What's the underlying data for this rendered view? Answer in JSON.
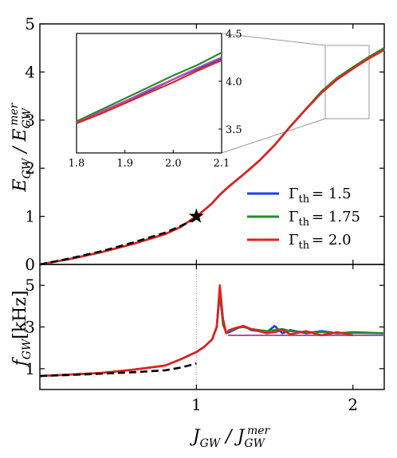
{
  "chart_data": [
    {
      "panel": "top",
      "type": "line",
      "ylabel": "E_GW / E_GW^mer",
      "xlim": [
        0,
        2.2
      ],
      "ylim": [
        0,
        5
      ],
      "yticks": [
        "0",
        "1",
        "2",
        "3",
        "4",
        "5"
      ],
      "legend_position": "lower-right",
      "series": [
        {
          "name": "Γth = 1.5",
          "color": "#1f3fe0",
          "x": [
            0,
            0.2,
            0.4,
            0.6,
            0.8,
            0.9,
            1.0,
            1.05,
            1.1,
            1.15,
            1.2,
            1.3,
            1.4,
            1.5,
            1.6,
            1.7,
            1.8,
            1.9,
            2.0,
            2.1,
            2.2
          ],
          "y": [
            0,
            0.12,
            0.26,
            0.43,
            0.63,
            0.78,
            1.0,
            1.13,
            1.27,
            1.45,
            1.6,
            1.87,
            2.15,
            2.48,
            2.87,
            3.23,
            3.58,
            3.86,
            4.08,
            4.29,
            4.48
          ]
        },
        {
          "name": "Γth = 1.75",
          "color": "#2a8a2a",
          "x": [
            0,
            0.2,
            0.4,
            0.6,
            0.8,
            0.9,
            1.0,
            1.05,
            1.1,
            1.15,
            1.2,
            1.3,
            1.4,
            1.5,
            1.6,
            1.7,
            1.8,
            1.9,
            2.0,
            2.1,
            2.2
          ],
          "y": [
            0,
            0.12,
            0.26,
            0.43,
            0.63,
            0.78,
            1.0,
            1.13,
            1.27,
            1.45,
            1.6,
            1.87,
            2.15,
            2.48,
            2.87,
            3.23,
            3.6,
            3.88,
            4.1,
            4.31,
            4.5
          ]
        },
        {
          "name": "Γth = 2.0",
          "color": "#e32020",
          "x": [
            0,
            0.2,
            0.4,
            0.6,
            0.8,
            0.9,
            1.0,
            1.05,
            1.1,
            1.15,
            1.2,
            1.3,
            1.4,
            1.5,
            1.6,
            1.7,
            1.8,
            1.9,
            2.0,
            2.1,
            2.2
          ],
          "y": [
            0,
            0.12,
            0.26,
            0.43,
            0.63,
            0.78,
            1.0,
            1.13,
            1.27,
            1.45,
            1.6,
            1.87,
            2.15,
            2.48,
            2.87,
            3.23,
            3.57,
            3.85,
            4.07,
            4.28,
            4.46
          ]
        }
      ],
      "dashed_reference": {
        "color": "#000000",
        "x": [
          0,
          0.2,
          0.4,
          0.6,
          0.8,
          0.9,
          1.0
        ],
        "y": [
          0,
          0.13,
          0.28,
          0.46,
          0.66,
          0.8,
          0.96
        ]
      },
      "marker": {
        "symbol": "star",
        "x": 1.0,
        "y": 1.0,
        "color": "#000000"
      },
      "inset": {
        "xlim": [
          1.8,
          2.1
        ],
        "ylim": [
          3.25,
          4.5
        ],
        "xticks": [
          "1.8",
          "1.9",
          "2.0",
          "2.1"
        ],
        "yticks": [
          "3.5",
          "4.0",
          "4.5"
        ],
        "series": [
          {
            "color": "#1f3fe0",
            "x": [
              1.8,
              1.85,
              1.9,
              1.95,
              2.0,
              2.05,
              2.1
            ],
            "y": [
              3.57,
              3.68,
              3.79,
              3.9,
              4.02,
              4.13,
              4.24
            ]
          },
          {
            "color": "#2a8a2a",
            "x": [
              1.8,
              1.85,
              1.9,
              1.95,
              2.0,
              2.05,
              2.1
            ],
            "y": [
              3.58,
              3.7,
              3.82,
              3.94,
              4.06,
              4.17,
              4.3
            ]
          },
          {
            "color": "#b050b0",
            "x": [
              1.8,
              1.85,
              1.9,
              1.95,
              2.0,
              2.05,
              2.1
            ],
            "y": [
              3.56,
              3.68,
              3.79,
              3.91,
              4.02,
              4.14,
              4.25
            ]
          },
          {
            "color": "#e32020",
            "x": [
              1.8,
              1.85,
              1.9,
              1.95,
              2.0,
              2.05,
              2.1
            ],
            "y": [
              3.56,
              3.66,
              3.77,
              3.88,
              3.99,
              4.11,
              4.22
            ]
          }
        ]
      }
    },
    {
      "panel": "bottom",
      "type": "line",
      "ylabel": "f_GW [kHz]",
      "xlabel": "J_GW / J_GW^mer",
      "xlim": [
        0,
        2.2
      ],
      "ylim": [
        0,
        6
      ],
      "xticks": [
        "1",
        "2"
      ],
      "yticks": [
        "1",
        "3",
        "5"
      ],
      "series": [
        {
          "name": "Γth = 1.5",
          "color": "#1f3fe0",
          "x": [
            0,
            0.2,
            0.4,
            0.6,
            0.8,
            0.9,
            1.0,
            1.05,
            1.1,
            1.13,
            1.15,
            1.17,
            1.19,
            1.21,
            1.25,
            1.3,
            1.35,
            1.4,
            1.45,
            1.5,
            1.55,
            1.6,
            1.7,
            1.8,
            1.9,
            2.0,
            2.2
          ],
          "y": [
            0.65,
            0.72,
            0.8,
            0.95,
            1.15,
            1.45,
            1.8,
            2.05,
            2.4,
            3.0,
            4.6,
            3.2,
            2.7,
            2.75,
            2.9,
            3.05,
            2.85,
            2.8,
            2.75,
            3.05,
            2.7,
            2.85,
            2.7,
            2.8,
            2.7,
            2.75,
            2.7
          ]
        },
        {
          "name": "Γth = 1.75",
          "color": "#2a8a2a",
          "x": [
            0,
            0.2,
            0.4,
            0.6,
            0.8,
            0.9,
            1.0,
            1.05,
            1.1,
            1.13,
            1.15,
            1.17,
            1.19,
            1.21,
            1.25,
            1.3,
            1.35,
            1.4,
            1.45,
            1.5,
            1.55,
            1.6,
            1.7,
            1.8,
            1.9,
            2.0,
            2.2
          ],
          "y": [
            0.65,
            0.72,
            0.8,
            0.95,
            1.15,
            1.45,
            1.8,
            2.05,
            2.4,
            3.0,
            4.8,
            3.1,
            2.75,
            2.8,
            2.95,
            3.0,
            2.9,
            2.85,
            2.8,
            2.85,
            2.9,
            2.8,
            2.75,
            2.75,
            2.7,
            2.72,
            2.7
          ]
        },
        {
          "name": "Γth = 2.0",
          "color": "#e32020",
          "x": [
            0,
            0.2,
            0.4,
            0.6,
            0.8,
            0.9,
            1.0,
            1.05,
            1.1,
            1.13,
            1.15,
            1.17,
            1.19,
            1.21,
            1.25,
            1.3,
            1.35,
            1.4,
            1.45,
            1.5,
            1.55,
            1.6,
            1.7,
            1.8,
            1.9,
            2.0
          ],
          "y": [
            0.65,
            0.72,
            0.8,
            0.95,
            1.15,
            1.45,
            1.8,
            2.05,
            2.4,
            3.0,
            5.0,
            3.4,
            2.7,
            2.85,
            2.95,
            3.05,
            2.9,
            2.8,
            2.7,
            2.75,
            2.85,
            2.65,
            2.8,
            2.6,
            2.75,
            2.6
          ]
        }
      ],
      "dashed_reference": {
        "color": "#000000",
        "x": [
          0,
          0.2,
          0.4,
          0.6,
          0.8,
          0.9,
          1.0
        ],
        "y": [
          0.65,
          0.7,
          0.76,
          0.83,
          0.92,
          1.05,
          1.25
        ]
      },
      "horizontal_level": {
        "color": "#b050b0",
        "x": [
          1.2,
          2.2
        ],
        "y": 2.6
      },
      "vertical_line": {
        "x": 1.0,
        "style": "dotted"
      }
    }
  ],
  "labels": {
    "top_ylabel_main": "E",
    "top_ylabel_sub": "GW",
    "top_ylabel_den": "E",
    "top_ylabel_den_sub": "GW",
    "top_ylabel_den_sup": "mer",
    "bottom_ylabel_main": "f",
    "bottom_ylabel_sub": "GW",
    "bottom_ylabel_unit": "[kHz]",
    "xlabel_main": "J",
    "xlabel_sub": "GW",
    "xlabel_den": "J",
    "xlabel_den_sub": "GW",
    "xlabel_den_sup": "mer",
    "legend_gamma": "Γ",
    "legend_sub": "th",
    "legend_values": [
      "= 1.5",
      "= 1.75",
      "= 2.0"
    ]
  }
}
